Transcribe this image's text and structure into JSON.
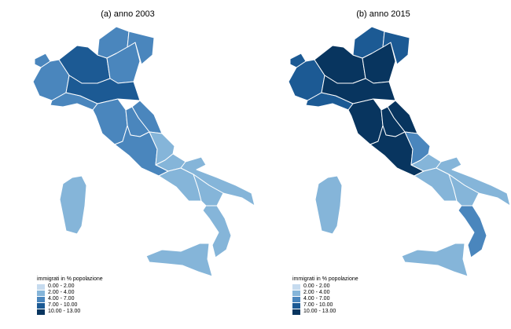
{
  "panels": [
    {
      "title": "(a) anno 2003"
    },
    {
      "title": "(b) anno 2015"
    }
  ],
  "legend": {
    "title": "immigrati in % popolazione",
    "classes": [
      {
        "label": "0.00 - 2.00",
        "color": "#c6dbef"
      },
      {
        "label": "2.00 - 4.00",
        "color": "#85b5d9"
      },
      {
        "label": "4.00 - 7.00",
        "color": "#4a86bd"
      },
      {
        "label": "7.00 - 10.00",
        "color": "#1c5a94"
      },
      {
        "label": "10.00 - 13.00",
        "color": "#08355f"
      }
    ]
  },
  "regions": {
    "2003": {
      "valle-d-aosta": 2,
      "piemonte": 2,
      "liguria": 2,
      "lombardia": 3,
      "trentino": 2,
      "veneto": 2,
      "friuli": 2,
      "emilia": 3,
      "toscana": 2,
      "umbria": 2,
      "marche": 2,
      "lazio": 2,
      "abruzzo": 1,
      "molise": 1,
      "campania": 1,
      "puglia": 1,
      "basilicata": 1,
      "calabria": 1,
      "sicilia": 1,
      "sardegna": 1
    },
    "2015": {
      "valle-d-aosta": 3,
      "piemonte": 3,
      "liguria": 3,
      "lombardia": 4,
      "trentino": 3,
      "veneto": 4,
      "friuli": 3,
      "emilia": 4,
      "toscana": 4,
      "umbria": 4,
      "marche": 4,
      "lazio": 4,
      "abruzzo": 2,
      "molise": 1,
      "campania": 1,
      "puglia": 1,
      "basilicata": 1,
      "calabria": 2,
      "sicilia": 1,
      "sardegna": 1
    }
  }
}
